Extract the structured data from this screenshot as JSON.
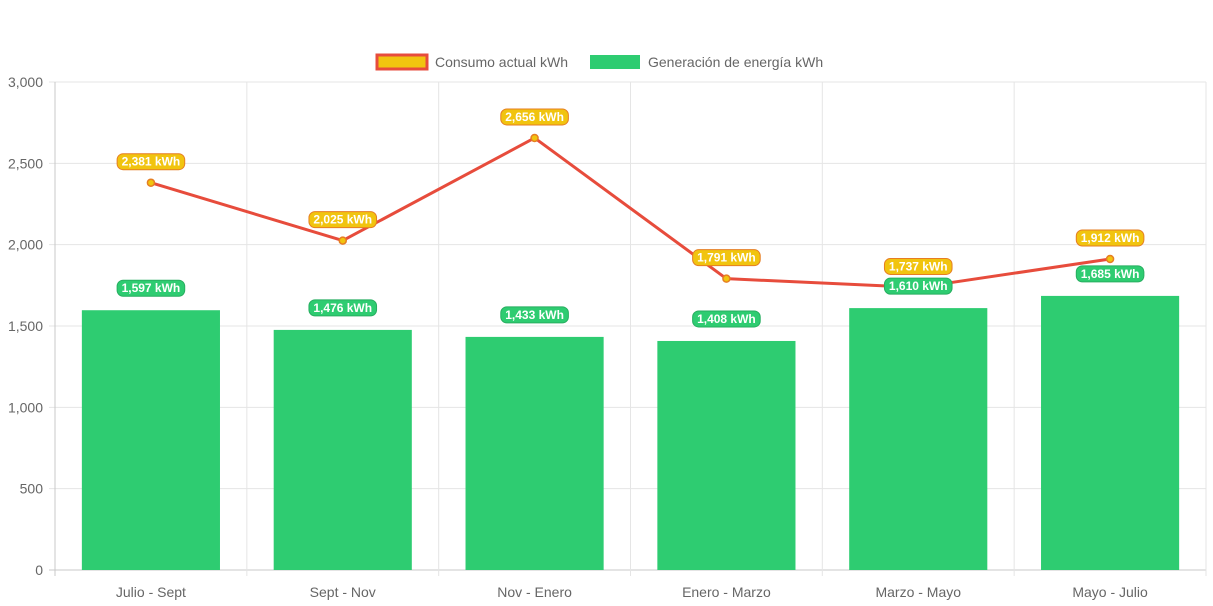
{
  "chart_data": {
    "type": "bar",
    "categories": [
      "Julio - Sept",
      "Sept - Nov",
      "Nov - Enero",
      "Enero - Marzo",
      "Marzo - Mayo",
      "Mayo - Julio"
    ],
    "series": [
      {
        "name": "Consumo actual kWh",
        "type": "line",
        "values": [
          2381,
          2025,
          2656,
          1791,
          1737,
          1912
        ],
        "data_labels": [
          "2,381 kWh",
          "2,025 kWh",
          "2,656 kWh",
          "1,791 kWh",
          "1,737 kWh",
          "1,912 kWh"
        ],
        "color": "#e74c3c",
        "point_color": "#f1c40f"
      },
      {
        "name": "Generación de energía kWh",
        "type": "bar",
        "values": [
          1597,
          1476,
          1433,
          1408,
          1610,
          1685
        ],
        "data_labels": [
          "1,597 kWh",
          "1,476 kWh",
          "1,433 kWh",
          "1,408 kWh",
          "1,610 kWh",
          "1,685 kWh"
        ],
        "color": "#2ecc71"
      }
    ],
    "ylim": [
      0,
      3000
    ],
    "y_ticks": [
      0,
      500,
      1000,
      1500,
      2000,
      2500,
      3000
    ],
    "y_tick_labels": [
      "0",
      "500",
      "1,000",
      "1,500",
      "2,000",
      "2,500",
      "3,000"
    ],
    "grid": true,
    "legend_position": "top-center",
    "title": "",
    "xlabel": "",
    "ylabel": ""
  }
}
